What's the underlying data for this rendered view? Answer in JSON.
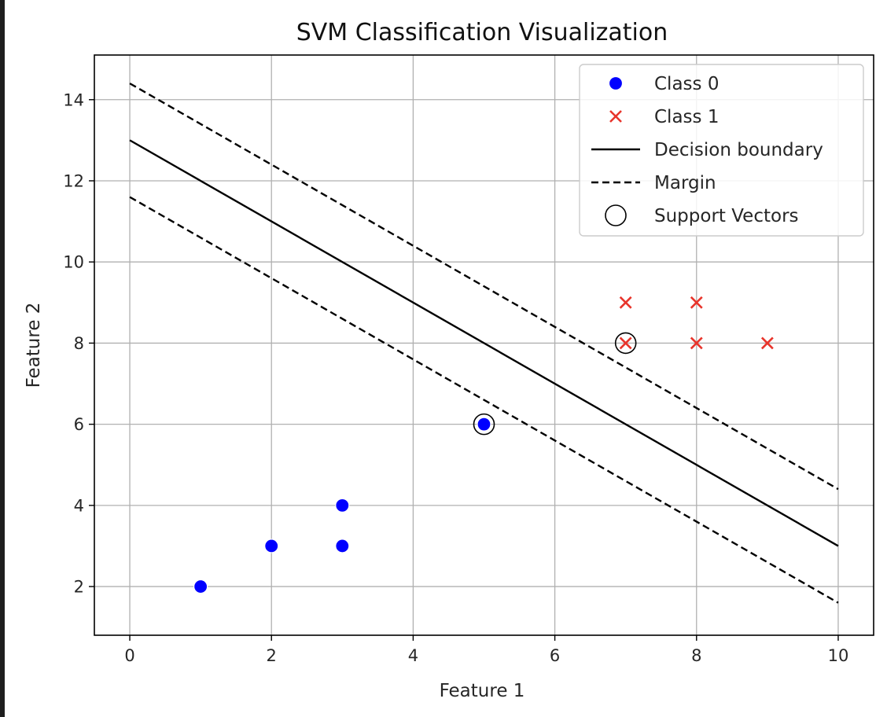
{
  "chart_data": {
    "type": "scatter",
    "title": "SVM Classification Visualization",
    "xlabel": "Feature 1",
    "ylabel": "Feature 2",
    "xlim": [
      -0.5,
      10.5
    ],
    "ylim": [
      0.8,
      15.1
    ],
    "xticks": [
      0,
      2,
      4,
      6,
      8,
      10
    ],
    "yticks": [
      2,
      4,
      6,
      8,
      10,
      12,
      14
    ],
    "grid": true,
    "legend_position": "top-right",
    "series": [
      {
        "name": "Class 0",
        "kind": "scatter",
        "marker": "circle",
        "color": "#0000ff",
        "points": [
          [
            1,
            2
          ],
          [
            2,
            3
          ],
          [
            3,
            3
          ],
          [
            3,
            4
          ],
          [
            5,
            6
          ]
        ]
      },
      {
        "name": "Class 1",
        "kind": "scatter",
        "marker": "x",
        "color": "#e8342b",
        "points": [
          [
            7,
            8
          ],
          [
            7,
            9
          ],
          [
            8,
            8
          ],
          [
            8,
            9
          ],
          [
            9,
            8
          ]
        ]
      },
      {
        "name": "Decision boundary",
        "kind": "line",
        "style": "solid",
        "color": "#000000",
        "points": [
          [
            0,
            13
          ],
          [
            10,
            3
          ]
        ]
      },
      {
        "name": "Margin",
        "kind": "line",
        "style": "dashed",
        "color": "#000000",
        "points": [
          [
            0,
            14.4
          ],
          [
            10,
            4.4
          ]
        ]
      },
      {
        "name": "",
        "kind": "line",
        "style": "dashed",
        "color": "#000000",
        "points": [
          [
            0,
            11.6
          ],
          [
            10,
            1.6
          ]
        ]
      },
      {
        "name": "Support Vectors",
        "kind": "scatter",
        "marker": "open-circle",
        "color": "#000000",
        "points": [
          [
            5,
            6
          ],
          [
            7,
            8
          ]
        ]
      }
    ]
  }
}
